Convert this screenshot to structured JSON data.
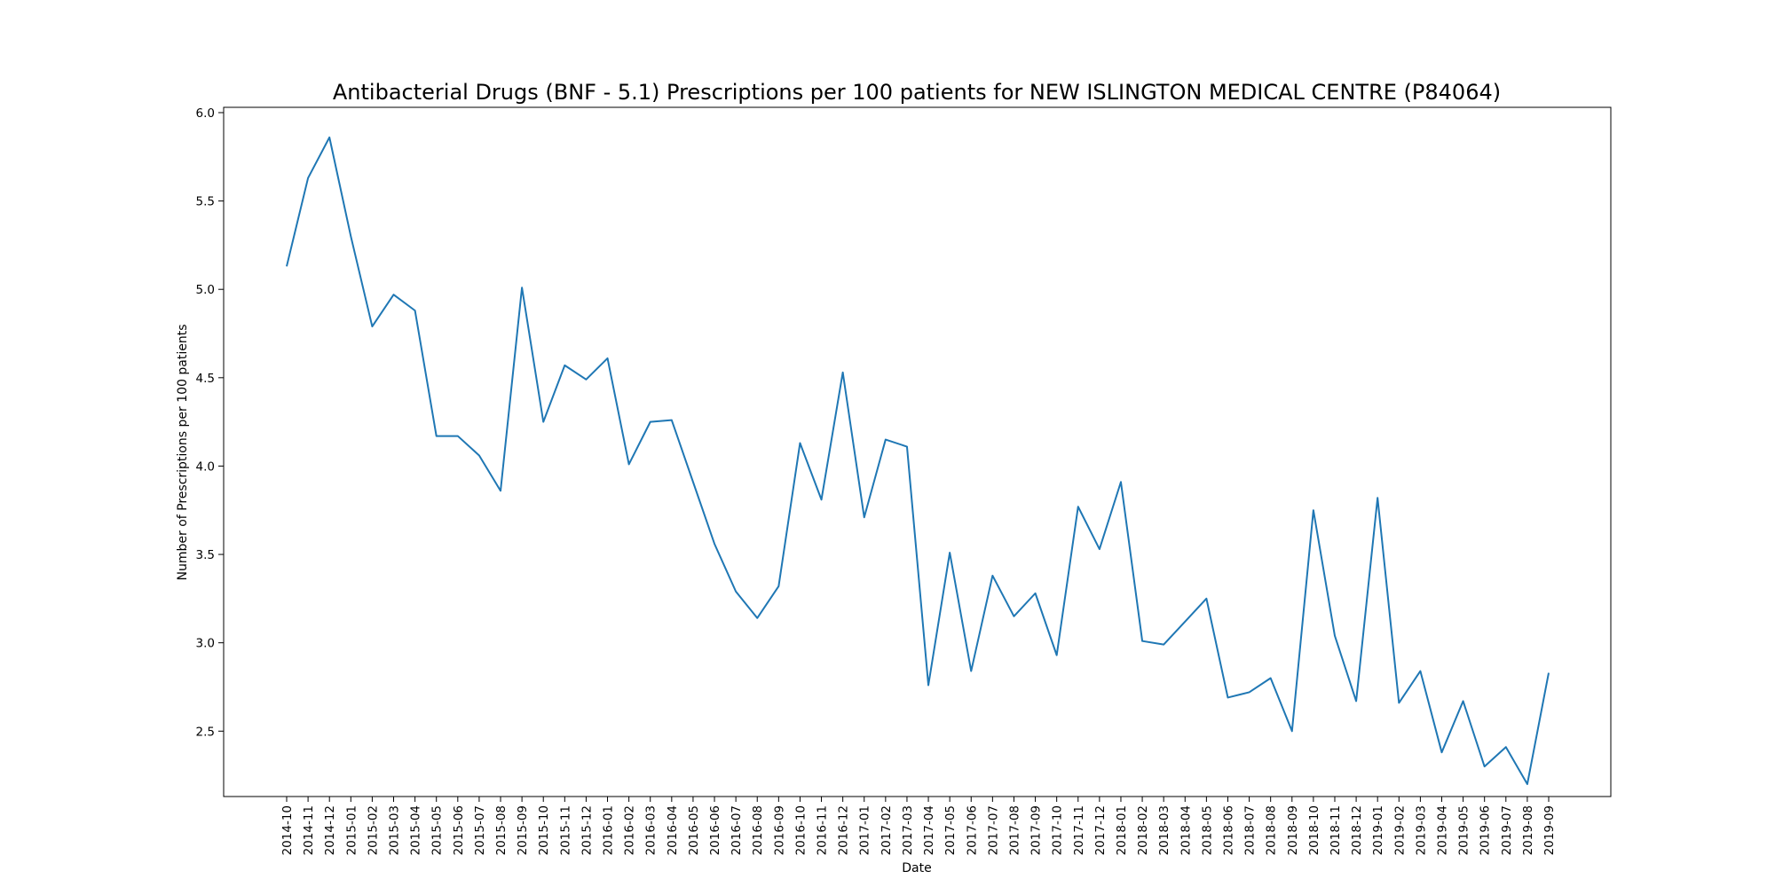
{
  "chart_data": {
    "type": "line",
    "title": "Antibacterial Drugs (BNF - 5.1) Prescriptions per 100 patients for NEW ISLINGTON MEDICAL CENTRE (P84064)",
    "xlabel": "Date",
    "ylabel": "Number of Prescriptions per 100 patients",
    "ylim": [
      2.13,
      6.03
    ],
    "yticks": [
      2.5,
      3.0,
      3.5,
      4.0,
      4.5,
      5.0,
      5.5,
      6.0
    ],
    "ytick_labels": [
      "2.5",
      "3.0",
      "3.5",
      "4.0",
      "4.5",
      "5.0",
      "5.5",
      "6.0"
    ],
    "grid": false,
    "line_color": "#1f77b4",
    "categories": [
      "2014-10",
      "2014-11",
      "2014-12",
      "2015-01",
      "2015-02",
      "2015-03",
      "2015-04",
      "2015-05",
      "2015-06",
      "2015-07",
      "2015-08",
      "2015-09",
      "2015-10",
      "2015-11",
      "2015-12",
      "2016-01",
      "2016-02",
      "2016-03",
      "2016-04",
      "2016-05",
      "2016-06",
      "2016-07",
      "2016-08",
      "2016-09",
      "2016-10",
      "2016-11",
      "2016-12",
      "2017-01",
      "2017-02",
      "2017-03",
      "2017-04",
      "2017-05",
      "2017-06",
      "2017-07",
      "2017-08",
      "2017-09",
      "2017-10",
      "2017-11",
      "2017-12",
      "2018-01",
      "2018-02",
      "2018-03",
      "2018-04",
      "2018-05",
      "2018-06",
      "2018-07",
      "2018-08",
      "2018-09",
      "2018-10",
      "2018-11",
      "2018-12",
      "2019-01",
      "2019-02",
      "2019-03",
      "2019-04",
      "2019-05",
      "2019-06",
      "2019-07",
      "2019-08",
      "2019-09"
    ],
    "series": [
      {
        "values": [
          5.13,
          5.63,
          5.86,
          5.3,
          4.79,
          4.97,
          4.88,
          4.17,
          4.17,
          4.06,
          3.86,
          5.01,
          4.25,
          4.57,
          4.49,
          4.61,
          4.01,
          4.25,
          4.26,
          3.91,
          3.56,
          3.29,
          3.14,
          3.32,
          4.13,
          3.81,
          4.53,
          3.71,
          4.15,
          4.11,
          2.76,
          3.51,
          2.84,
          3.38,
          3.15,
          3.28,
          2.93,
          3.77,
          3.53,
          3.91,
          3.01,
          2.99,
          3.12,
          3.25,
          2.69,
          2.72,
          2.8,
          2.5,
          3.75,
          3.04,
          2.67,
          3.82,
          2.66,
          2.84,
          2.38,
          2.67,
          2.3,
          2.41,
          2.2,
          2.83
        ]
      }
    ]
  }
}
